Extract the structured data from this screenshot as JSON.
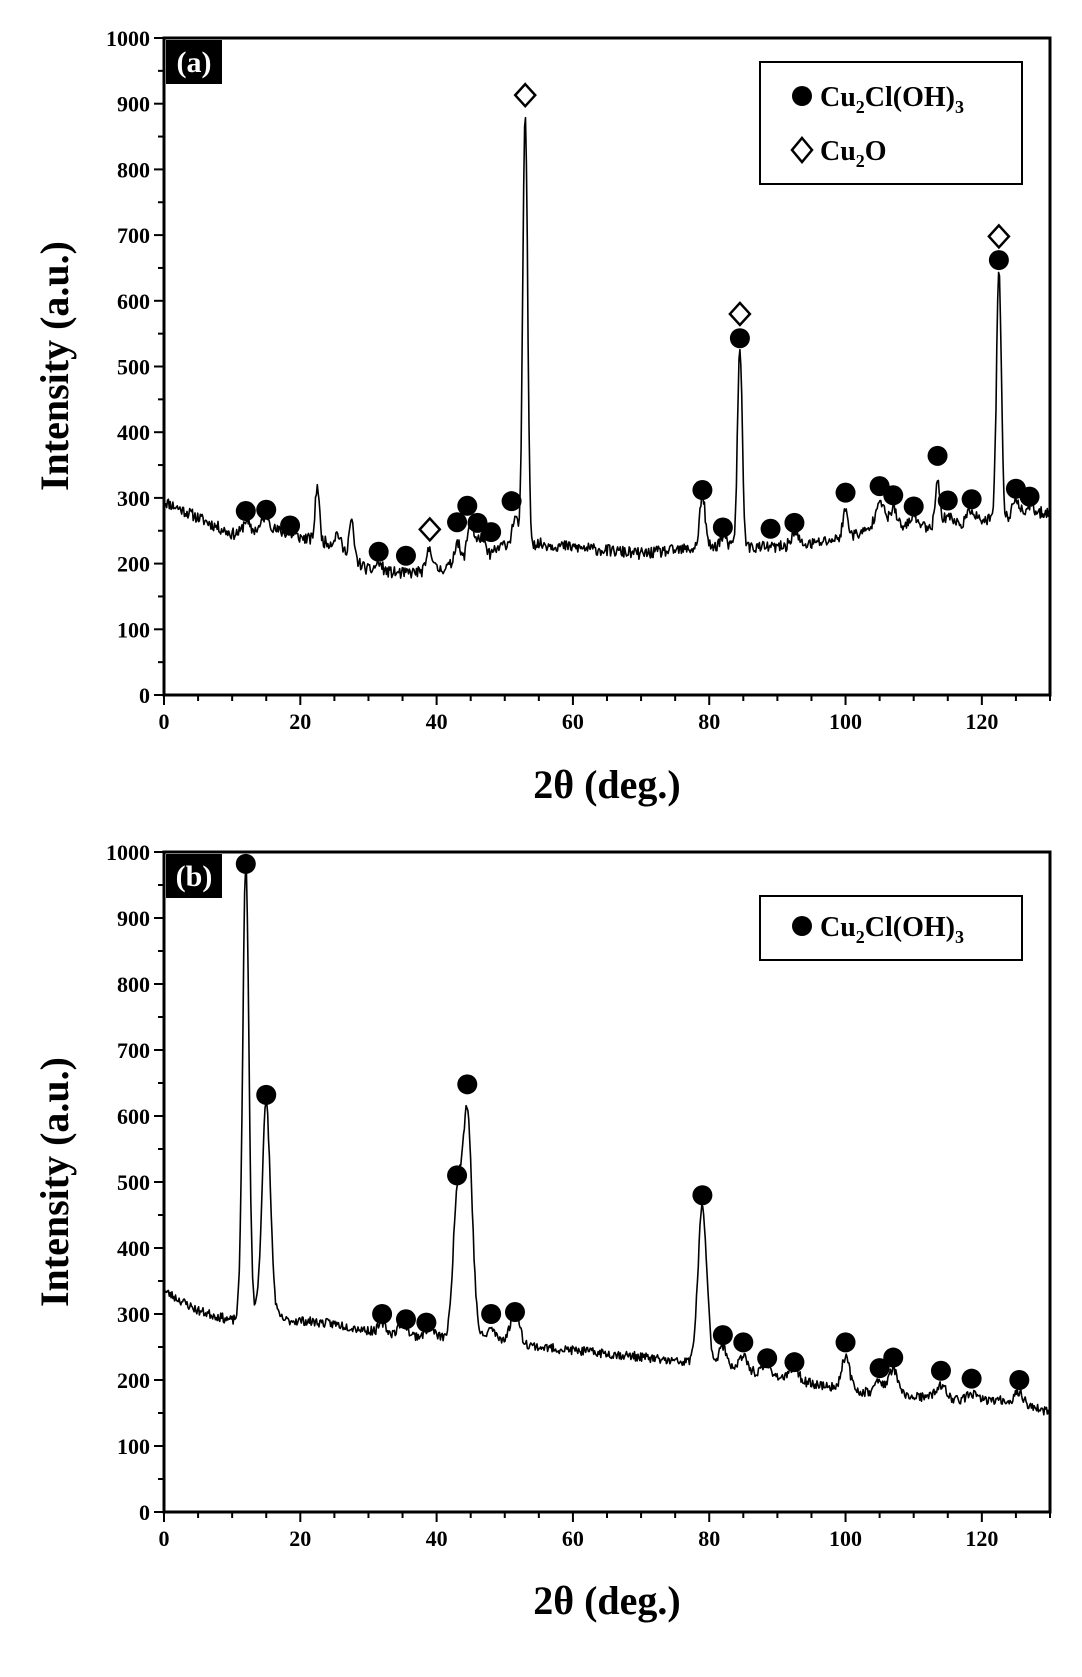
{
  "chart_data": [
    {
      "panel": "(a)",
      "type": "line",
      "xlabel": "2θ (deg.)",
      "ylabel": "Intensity (a.u.)",
      "xlim": [
        0,
        130
      ],
      "ylim": [
        0,
        1000
      ],
      "x_ticks": [
        "0",
        "20",
        "40",
        "60",
        "80",
        "100",
        "120"
      ],
      "y_ticks": [
        "0",
        "100",
        "200",
        "300",
        "400",
        "500",
        "600",
        "700",
        "800",
        "900",
        "1000"
      ],
      "legend": {
        "placement": "top-right",
        "entries": [
          {
            "marker": "filled-circle",
            "label_main": "Cu",
            "sub1": "2",
            "label_mid": "Cl(OH)",
            "sub2": "3"
          },
          {
            "marker": "open-diamond",
            "label_main": "Cu",
            "sub1": "2",
            "label_mid": "O",
            "sub2": ""
          }
        ]
      },
      "baseline": [
        [
          0,
          295
        ],
        [
          5,
          270
        ],
        [
          10,
          245
        ],
        [
          15,
          255
        ],
        [
          20,
          240
        ],
        [
          25,
          230
        ],
        [
          28,
          205
        ],
        [
          30,
          190
        ],
        [
          35,
          185
        ],
        [
          40,
          190
        ],
        [
          45,
          205
        ],
        [
          48,
          215
        ],
        [
          50,
          230
        ],
        [
          55,
          230
        ],
        [
          60,
          225
        ],
        [
          65,
          220
        ],
        [
          70,
          215
        ],
        [
          75,
          220
        ],
        [
          80,
          225
        ],
        [
          85,
          225
        ],
        [
          90,
          225
        ],
        [
          95,
          230
        ],
        [
          100,
          240
        ],
        [
          105,
          255
        ],
        [
          110,
          255
        ],
        [
          115,
          260
        ],
        [
          120,
          265
        ],
        [
          125,
          270
        ],
        [
          130,
          280
        ]
      ],
      "peaks": [
        [
          12,
          18,
          0.35
        ],
        [
          15,
          20,
          0.5
        ],
        [
          22.5,
          85,
          0.3
        ],
        [
          25.5,
          20,
          0.4
        ],
        [
          27.5,
          55,
          0.35
        ],
        [
          31.5,
          12,
          0.5
        ],
        [
          39,
          35,
          0.4
        ],
        [
          43,
          35,
          0.4
        ],
        [
          45,
          60,
          0.5
        ],
        [
          46.5,
          30,
          0.5
        ],
        [
          51.5,
          40,
          0.4
        ],
        [
          53,
          655,
          0.35
        ],
        [
          79,
          80,
          0.4
        ],
        [
          82,
          15,
          0.5
        ],
        [
          84.5,
          300,
          0.35
        ],
        [
          92.5,
          20,
          0.5
        ],
        [
          100,
          40,
          0.4
        ],
        [
          105,
          45,
          0.6
        ],
        [
          107,
          30,
          0.5
        ],
        [
          110,
          20,
          0.5
        ],
        [
          113.5,
          75,
          0.3
        ],
        [
          115,
          15,
          0.5
        ],
        [
          118.5,
          20,
          0.5
        ],
        [
          122.5,
          375,
          0.35
        ],
        [
          125,
          30,
          0.5
        ],
        [
          127,
          15,
          0.5
        ]
      ],
      "noise": 9,
      "seed": 11,
      "markers_circle": [
        [
          12,
          280
        ],
        [
          15,
          282
        ],
        [
          18.5,
          258
        ],
        [
          31.5,
          218
        ],
        [
          35.5,
          212
        ],
        [
          43,
          263
        ],
        [
          44.5,
          288
        ],
        [
          46,
          262
        ],
        [
          48,
          248
        ],
        [
          51,
          295
        ],
        [
          79,
          312
        ],
        [
          82,
          255
        ],
        [
          84.5,
          543
        ],
        [
          89,
          253
        ],
        [
          92.5,
          262
        ],
        [
          100,
          308
        ],
        [
          105,
          318
        ],
        [
          107,
          304
        ],
        [
          110,
          287
        ],
        [
          113.5,
          364
        ],
        [
          115,
          296
        ],
        [
          118.5,
          298
        ],
        [
          122.5,
          662
        ],
        [
          125,
          314
        ],
        [
          127,
          302
        ]
      ],
      "markers_diamond": [
        [
          39,
          252
        ],
        [
          53,
          913
        ],
        [
          84.5,
          580
        ],
        [
          122.5,
          698
        ]
      ]
    },
    {
      "panel": "(b)",
      "type": "line",
      "xlabel": "2θ (deg.)",
      "ylabel": "Intensity (a.u.)",
      "xlim": [
        0,
        130
      ],
      "ylim": [
        0,
        1000
      ],
      "x_ticks": [
        "0",
        "20",
        "40",
        "60",
        "80",
        "100",
        "120"
      ],
      "y_ticks": [
        "0",
        "100",
        "200",
        "300",
        "400",
        "500",
        "600",
        "700",
        "800",
        "900",
        "1000"
      ],
      "legend": {
        "placement": "top-right",
        "entries": [
          {
            "marker": "filled-circle",
            "label_main": "Cu",
            "sub1": "2",
            "label_mid": "Cl(OH)",
            "sub2": "3"
          }
        ]
      },
      "baseline": [
        [
          0,
          335
        ],
        [
          5,
          305
        ],
        [
          10,
          290
        ],
        [
          12,
          300
        ],
        [
          15,
          305
        ],
        [
          18,
          290
        ],
        [
          20,
          290
        ],
        [
          25,
          285
        ],
        [
          30,
          275
        ],
        [
          35,
          268
        ],
        [
          40,
          265
        ],
        [
          45,
          265
        ],
        [
          50,
          262
        ],
        [
          55,
          250
        ],
        [
          60,
          245
        ],
        [
          65,
          240
        ],
        [
          70,
          235
        ],
        [
          75,
          228
        ],
        [
          80,
          225
        ],
        [
          85,
          215
        ],
        [
          90,
          205
        ],
        [
          95,
          195
        ],
        [
          100,
          185
        ],
        [
          105,
          180
        ],
        [
          110,
          175
        ],
        [
          115,
          170
        ],
        [
          120,
          170
        ],
        [
          125,
          168
        ],
        [
          130,
          150
        ]
      ],
      "peaks": [
        [
          12,
          680,
          0.45
        ],
        [
          15,
          315,
          0.6
        ],
        [
          32,
          15,
          0.5
        ],
        [
          35,
          20,
          0.6
        ],
        [
          39,
          15,
          0.6
        ],
        [
          43,
          200,
          0.6
        ],
        [
          44.5,
          340,
          0.7
        ],
        [
          48,
          15,
          0.5
        ],
        [
          51.5,
          50,
          0.6
        ],
        [
          79,
          235,
          0.65
        ],
        [
          82,
          30,
          0.6
        ],
        [
          85,
          20,
          0.6
        ],
        [
          88.5,
          15,
          0.6
        ],
        [
          92.5,
          20,
          0.6
        ],
        [
          100,
          50,
          0.6
        ],
        [
          105,
          20,
          0.6
        ],
        [
          107,
          40,
          0.6
        ],
        [
          114,
          20,
          0.8
        ],
        [
          118.5,
          10,
          0.6
        ],
        [
          125.5,
          15,
          0.6
        ]
      ],
      "noise": 7,
      "seed": 23,
      "markers_circle": [
        [
          12,
          982
        ],
        [
          15,
          632
        ],
        [
          32,
          300
        ],
        [
          35.5,
          292
        ],
        [
          38.5,
          287
        ],
        [
          43,
          510
        ],
        [
          44.5,
          648
        ],
        [
          48,
          300
        ],
        [
          51.5,
          303
        ],
        [
          79,
          480
        ],
        [
          82,
          268
        ],
        [
          85,
          257
        ],
        [
          88.5,
          233
        ],
        [
          92.5,
          227
        ],
        [
          100,
          257
        ],
        [
          105,
          218
        ],
        [
          107,
          234
        ],
        [
          114,
          214
        ],
        [
          118.5,
          202
        ],
        [
          125.5,
          200
        ]
      ],
      "markers_diamond": []
    }
  ]
}
